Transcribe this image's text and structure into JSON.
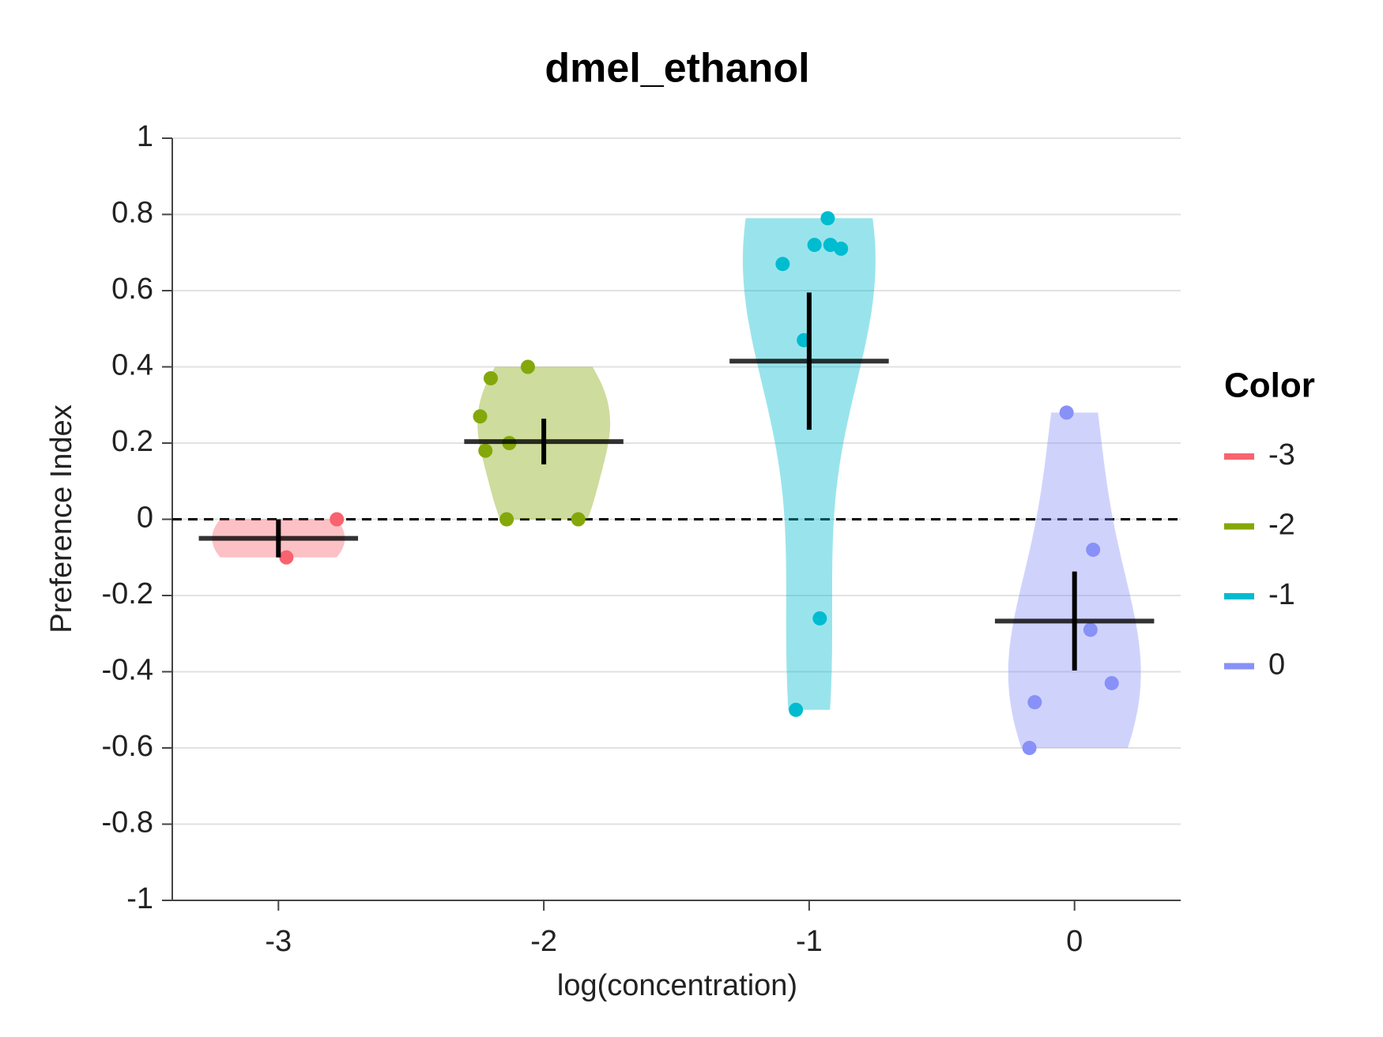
{
  "chart_data": {
    "type": "violin",
    "title": "dmel_ethanol",
    "x_label": "log(concentration)",
    "y_label": "Preference Index",
    "xlim": [
      -3.4,
      0.4
    ],
    "xticks": [
      -3,
      -2,
      -1,
      0
    ],
    "ylim": [
      -1,
      1
    ],
    "yticks": [
      -1,
      -0.8,
      -0.6,
      -0.4,
      -0.2,
      0,
      0.2,
      0.4,
      0.6,
      0.8,
      1
    ],
    "grid": true,
    "zero_line": true,
    "legend_title": "Color",
    "legend_position": "right",
    "series": [
      {
        "name": "-3",
        "color": "#f8636f",
        "position": -3,
        "points_x": [
          -2.78,
          -2.97
        ],
        "points_y": [
          0,
          -0.1
        ],
        "mean": -0.05,
        "error": 0.05
      },
      {
        "name": "-2",
        "color": "#84a80a",
        "position": -2,
        "points_x": [
          -2.06,
          -2.2,
          -2.24,
          -2.13,
          -2.22,
          -2.14,
          -1.87
        ],
        "points_y": [
          0.4,
          0.37,
          0.27,
          0.2,
          0.18,
          0,
          0
        ],
        "mean": 0.204,
        "error": 0.06
      },
      {
        "name": "-1",
        "color": "#00bcd0",
        "position": -1,
        "points_x": [
          -0.93,
          -0.98,
          -0.92,
          -0.88,
          -1.1,
          -1.02,
          -0.96,
          -1.05
        ],
        "points_y": [
          0.79,
          0.72,
          0.72,
          0.71,
          0.67,
          0.47,
          -0.26,
          -0.5
        ],
        "mean": 0.415,
        "error": 0.18
      },
      {
        "name": "0",
        "color": "#8891f7",
        "position": 0,
        "points_x": [
          -0.03,
          0.07,
          0.06,
          0.14,
          -0.15,
          -0.17
        ],
        "points_y": [
          0.28,
          -0.08,
          -0.29,
          -0.43,
          -0.48,
          -0.6
        ],
        "mean": -0.267,
        "error": 0.13
      }
    ]
  }
}
